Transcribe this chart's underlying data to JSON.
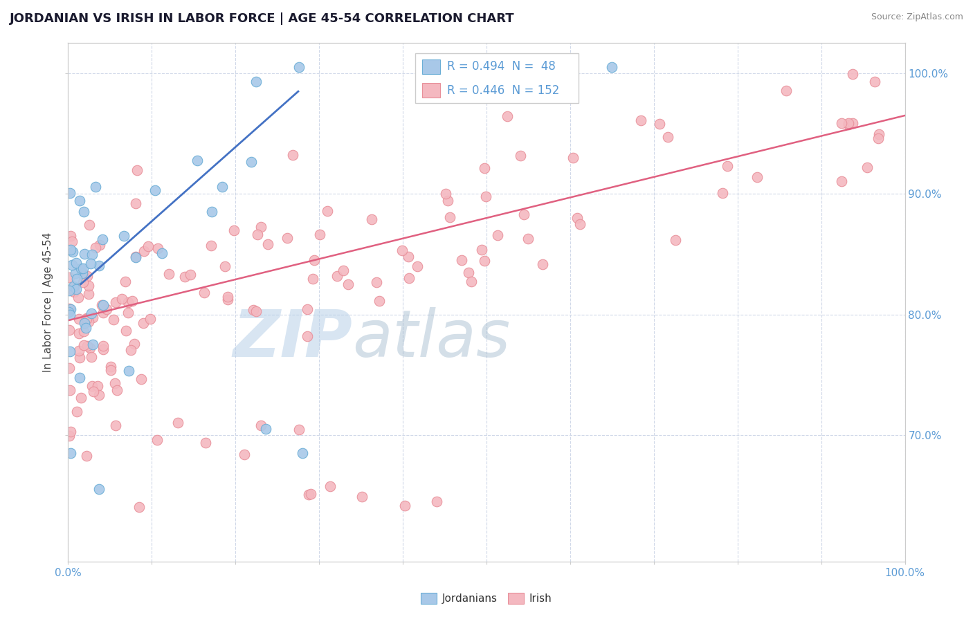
{
  "title": "JORDANIAN VS IRISH IN LABOR FORCE | AGE 45-54 CORRELATION CHART",
  "source_text": "Source: ZipAtlas.com",
  "ylabel": "In Labor Force | Age 45-54",
  "xlim": [
    0.0,
    1.0
  ],
  "ylim": [
    0.595,
    1.025
  ],
  "ytick_labels": [
    "70.0%",
    "80.0%",
    "90.0%",
    "100.0%"
  ],
  "ytick_positions": [
    0.7,
    0.8,
    0.9,
    1.0
  ],
  "jordanian_color": "#a8c8e8",
  "jordanian_edge": "#6baed6",
  "irish_color": "#f4b8c0",
  "irish_edge": "#e8909a",
  "trend_color_jordanian": "#4472c4",
  "trend_color_irish": "#e06080",
  "background_color": "#ffffff",
  "grid_color": "#d0d8e8",
  "tick_color": "#5b9bd5",
  "title_color": "#1a1a2e",
  "source_color": "#888888",
  "watermark_zip_color": "#c8dff0",
  "watermark_atlas_color": "#b8c8d8",
  "jordanian_label": "Jordanians",
  "irish_label": "Irish",
  "title_fontsize": 13,
  "axis_fontsize": 11,
  "tick_fontsize": 11,
  "irish_trend_x": [
    0.0,
    1.0
  ],
  "irish_trend_y": [
    0.795,
    0.965
  ],
  "jordanian_trend_x": [
    0.015,
    0.275
  ],
  "jordanian_trend_y": [
    0.825,
    0.985
  ]
}
